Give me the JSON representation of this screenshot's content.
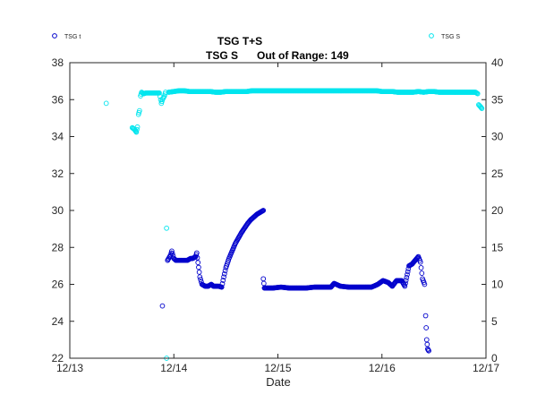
{
  "chart_data": {
    "type": "scatter",
    "title": "TSG T+S",
    "subtitle_label": "TSG S",
    "subtitle_range": "Out of Range: 149",
    "xlabel": "Date",
    "x_ticks": [
      "12/13",
      "12/14",
      "12/15",
      "12/16",
      "12/17"
    ],
    "x_range": [
      0,
      4
    ],
    "y_left_ticks": [
      "22",
      "24",
      "26",
      "28",
      "30",
      "32",
      "34",
      "36",
      "38"
    ],
    "y_left_range": [
      22,
      38
    ],
    "y_right_ticks": [
      "0",
      "5",
      "10",
      "15",
      "20",
      "25",
      "30",
      "35",
      "40"
    ],
    "y_right_range": [
      0,
      40
    ],
    "grid": false,
    "legend": [
      "TSG t",
      "TSG S"
    ],
    "series": [
      {
        "name": "TSG t",
        "axis": "left",
        "color": "#0000cc",
        "points": [
          [
            0.89,
            24.83
          ],
          [
            0.94,
            27.3
          ],
          [
            0.95,
            27.4
          ],
          [
            0.97,
            27.6
          ],
          [
            0.98,
            27.8
          ],
          [
            1.0,
            27.4
          ],
          [
            1.02,
            27.3
          ],
          [
            1.05,
            27.3
          ],
          [
            1.08,
            27.3
          ],
          [
            1.1,
            27.3
          ],
          [
            1.13,
            27.3
          ],
          [
            1.16,
            27.4
          ],
          [
            1.18,
            27.4
          ],
          [
            1.21,
            27.5
          ],
          [
            1.22,
            27.7
          ],
          [
            1.25,
            26.4
          ],
          [
            1.27,
            26.0
          ],
          [
            1.3,
            25.9
          ],
          [
            1.33,
            25.9
          ],
          [
            1.36,
            26.0
          ],
          [
            1.38,
            25.9
          ],
          [
            1.41,
            25.9
          ],
          [
            1.43,
            25.9
          ],
          [
            1.46,
            25.85
          ],
          [
            1.48,
            26.4
          ],
          [
            1.5,
            26.9
          ],
          [
            1.53,
            27.4
          ],
          [
            1.56,
            27.8
          ],
          [
            1.59,
            28.2
          ],
          [
            1.62,
            28.5
          ],
          [
            1.65,
            28.8
          ],
          [
            1.68,
            29.05
          ],
          [
            1.71,
            29.3
          ],
          [
            1.74,
            29.5
          ],
          [
            1.77,
            29.65
          ],
          [
            1.8,
            29.8
          ],
          [
            1.83,
            29.9
          ],
          [
            1.86,
            30.0
          ],
          [
            1.86,
            26.3
          ],
          [
            1.87,
            25.8
          ],
          [
            1.95,
            25.8
          ],
          [
            2.03,
            25.85
          ],
          [
            2.11,
            25.8
          ],
          [
            2.19,
            25.8
          ],
          [
            2.27,
            25.8
          ],
          [
            2.35,
            25.85
          ],
          [
            2.43,
            25.85
          ],
          [
            2.51,
            25.85
          ],
          [
            2.54,
            26.05
          ],
          [
            2.6,
            25.9
          ],
          [
            2.68,
            25.85
          ],
          [
            2.76,
            25.85
          ],
          [
            2.84,
            25.85
          ],
          [
            2.9,
            25.85
          ],
          [
            2.96,
            26.0
          ],
          [
            3.01,
            26.2
          ],
          [
            3.06,
            26.1
          ],
          [
            3.1,
            25.9
          ],
          [
            3.14,
            26.2
          ],
          [
            3.19,
            26.2
          ],
          [
            3.22,
            25.9
          ],
          [
            3.26,
            27.0
          ],
          [
            3.29,
            27.1
          ],
          [
            3.32,
            27.3
          ],
          [
            3.35,
            27.5
          ],
          [
            3.37,
            27.2
          ],
          [
            3.39,
            26.3
          ],
          [
            3.41,
            26.0
          ],
          [
            3.42,
            24.3
          ],
          [
            3.43,
            23.0
          ],
          [
            3.44,
            22.5
          ],
          [
            3.45,
            22.4
          ]
        ]
      },
      {
        "name": "TSG S",
        "axis": "right",
        "color": "#00e5ee",
        "points": [
          [
            0.35,
            34.5
          ],
          [
            0.6,
            31.2
          ],
          [
            0.62,
            31.0
          ],
          [
            0.63,
            30.8
          ],
          [
            0.64,
            30.6
          ],
          [
            0.65,
            31.3
          ],
          [
            0.66,
            33.0
          ],
          [
            0.67,
            33.5
          ],
          [
            0.68,
            35.5
          ],
          [
            0.69,
            36.0
          ],
          [
            0.71,
            35.8
          ],
          [
            0.73,
            35.9
          ],
          [
            0.76,
            35.9
          ],
          [
            0.79,
            35.9
          ],
          [
            0.82,
            35.9
          ],
          [
            0.86,
            35.9
          ],
          [
            0.88,
            34.5
          ],
          [
            0.89,
            35.0
          ],
          [
            0.91,
            35.5
          ],
          [
            0.92,
            36.0
          ],
          [
            0.93,
            17.6
          ],
          [
            0.93,
            0.0
          ],
          [
            0.95,
            36.0
          ],
          [
            1.0,
            36.1
          ],
          [
            1.05,
            36.2
          ],
          [
            1.1,
            36.2
          ],
          [
            1.15,
            36.1
          ],
          [
            1.2,
            36.1
          ],
          [
            1.25,
            36.1
          ],
          [
            1.3,
            36.1
          ],
          [
            1.35,
            36.1
          ],
          [
            1.4,
            36.0
          ],
          [
            1.45,
            36.0
          ],
          [
            1.5,
            36.1
          ],
          [
            1.55,
            36.1
          ],
          [
            1.6,
            36.1
          ],
          [
            1.65,
            36.1
          ],
          [
            1.7,
            36.1
          ],
          [
            1.75,
            36.2
          ],
          [
            1.8,
            36.2
          ],
          [
            1.85,
            36.2
          ],
          [
            1.9,
            36.2
          ],
          [
            1.95,
            36.2
          ],
          [
            2.0,
            36.2
          ],
          [
            2.05,
            36.2
          ],
          [
            2.1,
            36.2
          ],
          [
            2.15,
            36.2
          ],
          [
            2.2,
            36.2
          ],
          [
            2.25,
            36.2
          ],
          [
            2.3,
            36.2
          ],
          [
            2.35,
            36.2
          ],
          [
            2.4,
            36.2
          ],
          [
            2.45,
            36.2
          ],
          [
            2.5,
            36.2
          ],
          [
            2.55,
            36.2
          ],
          [
            2.6,
            36.2
          ],
          [
            2.65,
            36.2
          ],
          [
            2.7,
            36.2
          ],
          [
            2.75,
            36.2
          ],
          [
            2.8,
            36.2
          ],
          [
            2.85,
            36.2
          ],
          [
            2.9,
            36.2
          ],
          [
            2.95,
            36.2
          ],
          [
            3.0,
            36.1
          ],
          [
            3.05,
            36.1
          ],
          [
            3.1,
            36.1
          ],
          [
            3.15,
            36.0
          ],
          [
            3.2,
            36.0
          ],
          [
            3.25,
            36.0
          ],
          [
            3.3,
            36.0
          ],
          [
            3.35,
            36.1
          ],
          [
            3.4,
            36.0
          ],
          [
            3.45,
            36.1
          ],
          [
            3.5,
            36.1
          ],
          [
            3.55,
            36.0
          ],
          [
            3.6,
            36.0
          ],
          [
            3.65,
            36.0
          ],
          [
            3.7,
            36.0
          ],
          [
            3.75,
            36.0
          ],
          [
            3.8,
            36.0
          ],
          [
            3.85,
            36.0
          ],
          [
            3.9,
            36.0
          ],
          [
            3.92,
            35.8
          ],
          [
            3.93,
            34.3
          ],
          [
            3.95,
            34.0
          ],
          [
            3.96,
            33.8
          ]
        ]
      }
    ]
  }
}
